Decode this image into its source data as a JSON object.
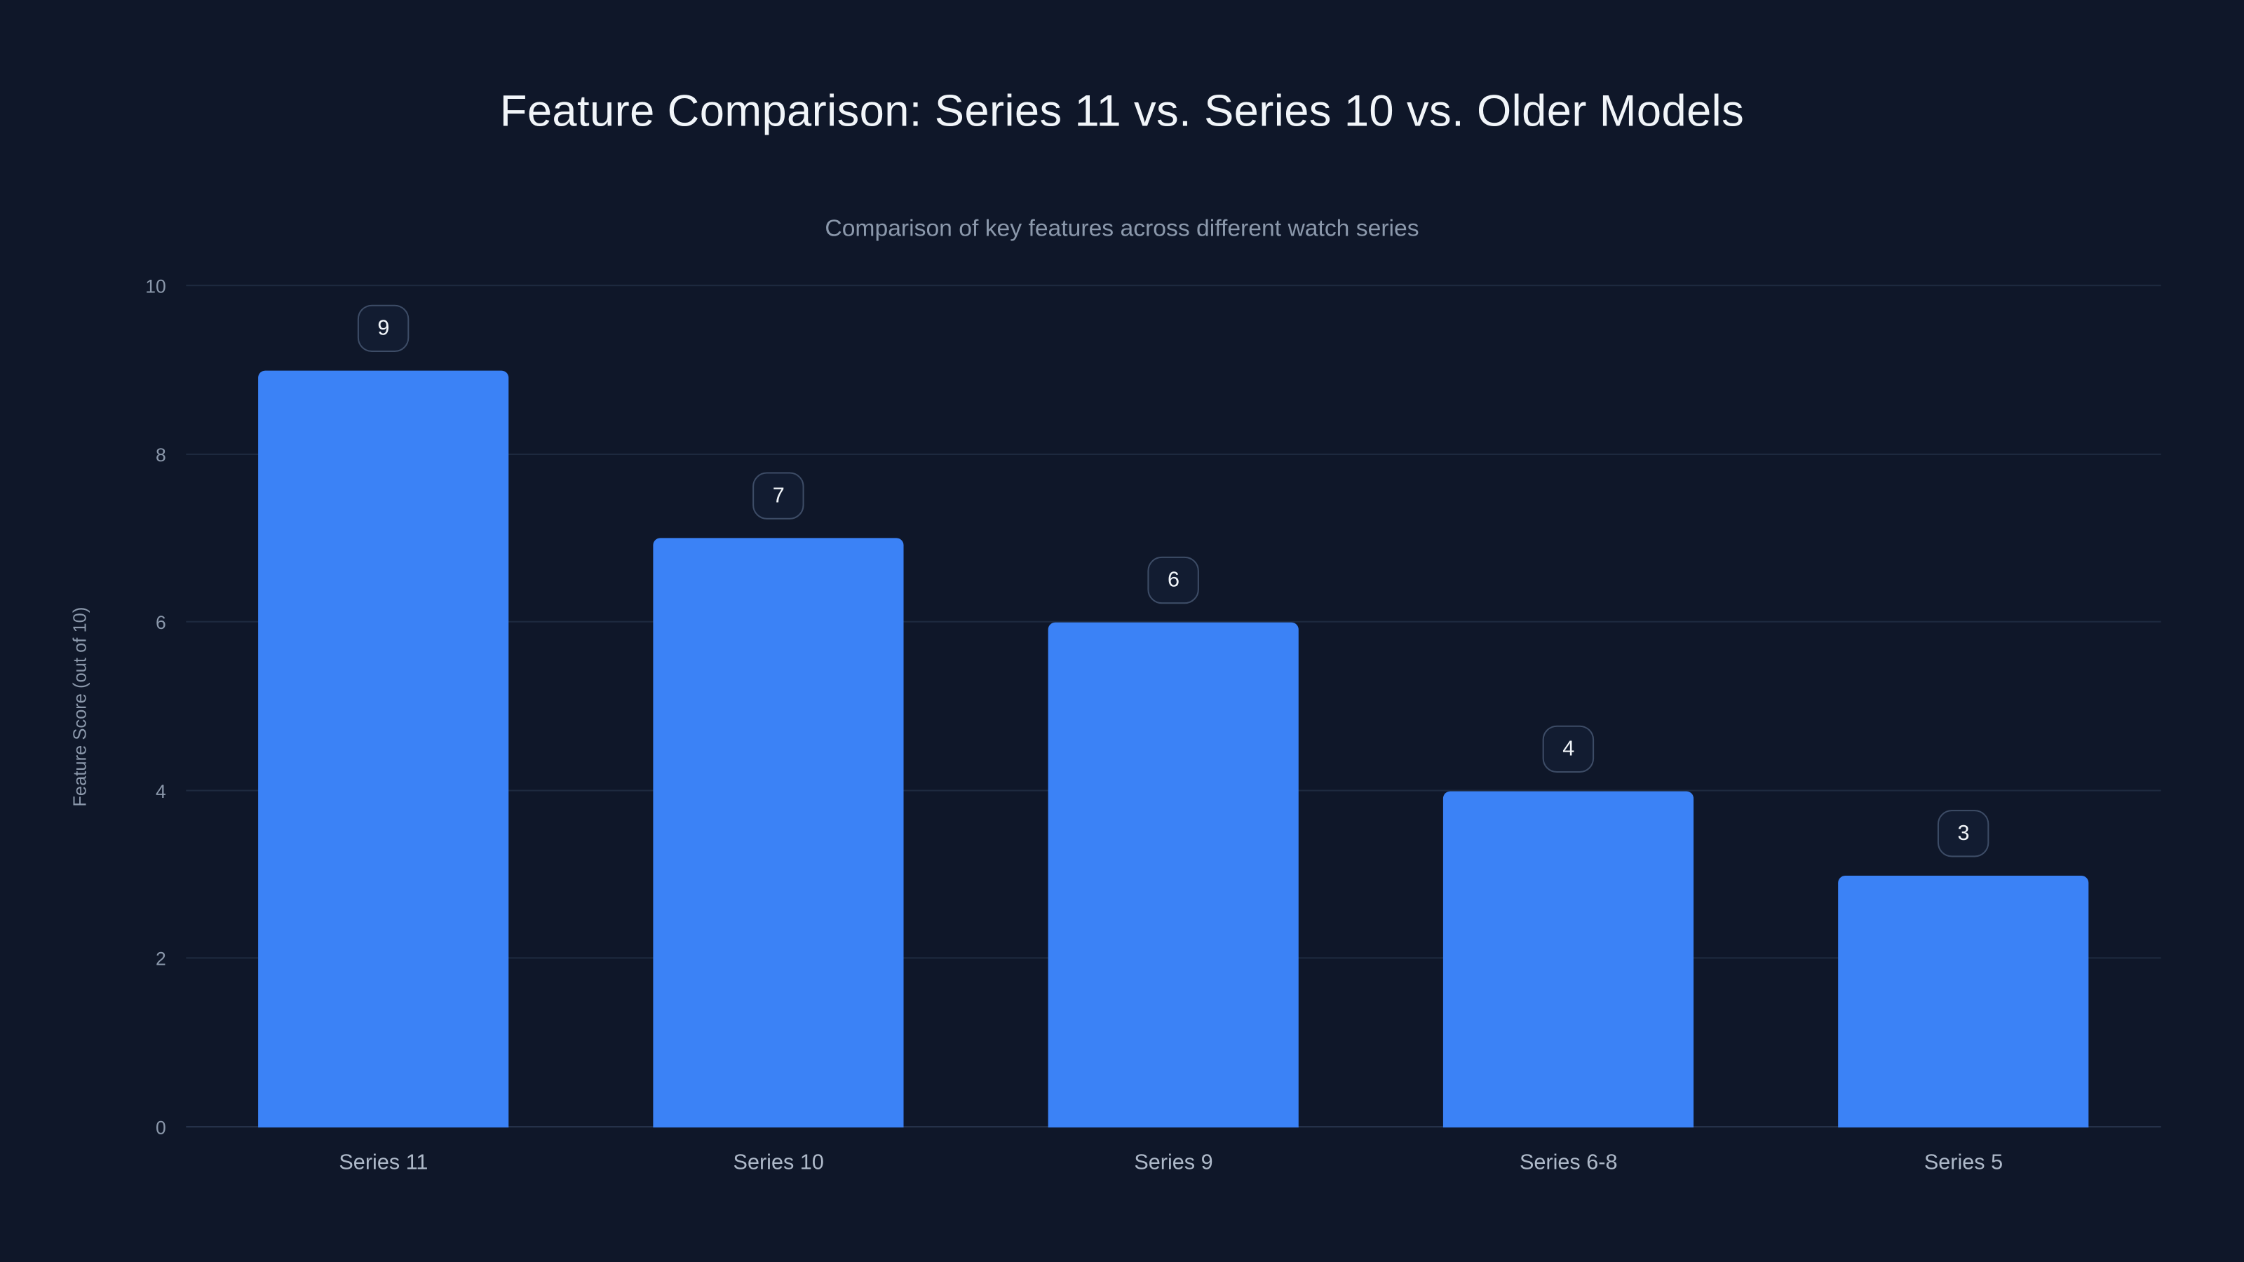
{
  "chart": {
    "title": "Feature Comparison: Series 11 vs. Series 10 vs. Older Models",
    "subtitle": "Comparison of key features across different watch series",
    "ylabel": "Feature Score (out of 10)"
  },
  "chart_data": {
    "type": "bar",
    "title": "Feature Comparison: Series 11 vs. Series 10 vs. Older Models",
    "subtitle": "Comparison of key features across different watch series",
    "categories": [
      "Series 11",
      "Series 10",
      "Series 9",
      "Series 6-8",
      "Series 5"
    ],
    "values": [
      9,
      7,
      6,
      4,
      3
    ],
    "data_labels": [
      "9",
      "7",
      "6",
      "4",
      "3"
    ],
    "xlabel": "",
    "ylabel": "Feature Score (out of 10)",
    "ylim": [
      0,
      10
    ],
    "yticks": [
      0,
      2,
      4,
      6,
      8,
      10
    ],
    "grid": true,
    "legend": "none",
    "colors": {
      "background": "#0f1729",
      "bar": "#3b82f6",
      "grid": "#1e2a3f",
      "title_text": "#f1f5f9",
      "muted_text": "#8b98ab",
      "badge_border": "#3d4c66",
      "badge_background": "#121c31"
    }
  }
}
